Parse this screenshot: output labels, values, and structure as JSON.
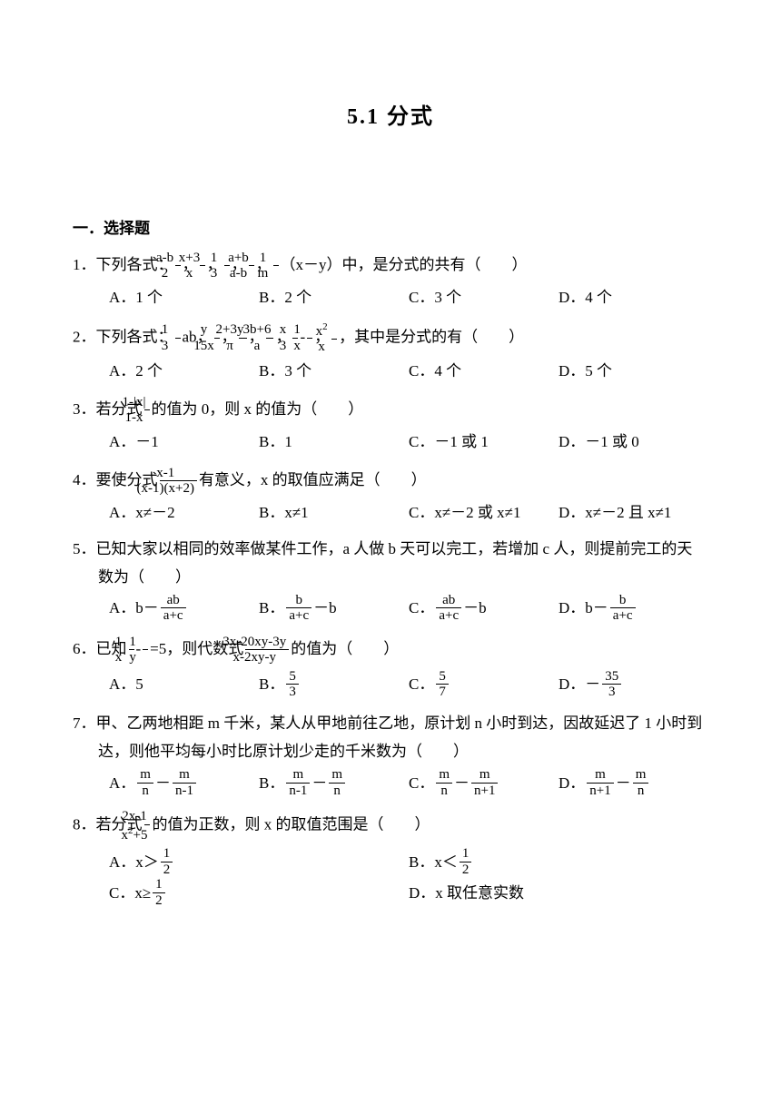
{
  "title": "5.1 分式",
  "section_header": "一．选择题",
  "questions": {
    "q1": {
      "num": "1．",
      "stem_pre": "下列各式：",
      "frac1_num": "a-b",
      "frac1_den": "2",
      "sep1": "，",
      "frac2_num": "x+3",
      "frac2_den": "x",
      "sep2": "，",
      "frac3_num": "1",
      "frac3_den": "3",
      "sep3": "，",
      "frac4_num": "a+b",
      "frac4_den": "a-b",
      "sep4": "，",
      "frac5_num": "1",
      "frac5_den": "m",
      "stem_post": "（x－y）中，是分式的共有（　　）",
      "optA": "A．1 个",
      "optB": "B．2 个",
      "optC": "C．3 个",
      "optD": "D．4 个"
    },
    "q2": {
      "num": "2．",
      "stem_pre": "下列各式：",
      "f1_num": "1",
      "f1_den": "3",
      "f1_post": "ab，",
      "f2_num": "y",
      "f2_den": "15x",
      "sep2": "，",
      "f3_num": "2+3y",
      "f3_den": "π",
      "sep3": "，",
      "f4_num": "3b+6",
      "f4_den": "a",
      "sep4": "，",
      "f5_num": "x",
      "f5_den": "3",
      "minus": "-",
      "f6_num": "1",
      "f6_den": "x",
      "sep6": "，",
      "f7_num": "x",
      "f7_sup": "2",
      "f7_den": "x",
      "stem_post": "，其中是分式的有（　　）",
      "optA": "A．2 个",
      "optB": "B．3 个",
      "optC": "C．4 个",
      "optD": "D．5 个"
    },
    "q3": {
      "num": "3．",
      "stem_pre": "若分式",
      "f_num": "1-|x|",
      "f_den": "1-x",
      "stem_post": "的值为 0，则 x 的值为（　　）",
      "optA": "A．－1",
      "optB": "B．1",
      "optC": "C．－1 或 1",
      "optD": "D．－1 或 0"
    },
    "q4": {
      "num": "4．",
      "stem_pre": "要使分式",
      "f_num": "x-1",
      "f_den": "(x-1)(x+2)",
      "stem_post": "有意义，x 的取值应满足（　　）",
      "optA": "A．x≠－2",
      "optB": "B．x≠1",
      "optC": "C．x≠－2 或 x≠1",
      "optD": "D．x≠－2 且 x≠1"
    },
    "q5": {
      "num": "5．",
      "line1": "已知大家以相同的效率做某件工作，a 人做 b 天可以完工，若增加 c 人，则提前完工的天",
      "line2": "数为（　　）",
      "optA_pre": "A．b－",
      "optA_num": "ab",
      "optA_den": "a+c",
      "optB_pre": "B．",
      "optB_num": "b",
      "optB_den": "a+c",
      "optB_post": "－b",
      "optC_pre": "C．",
      "optC_num": "ab",
      "optC_den": "a+c",
      "optC_post": "－b",
      "optD_pre": "D．b－",
      "optD_num": "b",
      "optD_den": "a+c"
    },
    "q6": {
      "num": "6．",
      "stem_pre": "已知",
      "f1_num": "1",
      "f1_den": "x",
      "minus": "-",
      "f2_num": "1",
      "f2_den": "y",
      "eq5": "=5，则代数式",
      "f3_num": "3x-20xy-3y",
      "f3_den": "x-2xy-y",
      "stem_post": "的值为（　　）",
      "optA": "A．5",
      "optB_pre": "B．",
      "optB_num": "5",
      "optB_den": "3",
      "optC_pre": "C．",
      "optC_num": "5",
      "optC_den": "7",
      "optD_pre": "D．－",
      "optD_num": "35",
      "optD_den": "3"
    },
    "q7": {
      "num": "7．",
      "line1": "甲、乙两地相距 m 千米，某人从甲地前往乙地，原计划 n 小时到达，因故延迟了 1 小时到",
      "line2": "达，则他平均每小时比原计划少走的千米数为（　　）",
      "optA_pre": "A．",
      "optA1_num": "m",
      "optA1_den": "n",
      "optA_minus": "－",
      "optA2_num": "m",
      "optA2_den": "n-1",
      "optB_pre": "B．",
      "optB1_num": "m",
      "optB1_den": "n-1",
      "optB_minus": "－",
      "optB2_num": "m",
      "optB2_den": "n",
      "optC_pre": "C．",
      "optC1_num": "m",
      "optC1_den": "n",
      "optC_minus": "－",
      "optC2_num": "m",
      "optC2_den": "n+1",
      "optD_pre": "D．",
      "optD1_num": "m",
      "optD1_den": "n+1",
      "optD_minus": "－",
      "optD2_num": "m",
      "optD2_den": "n"
    },
    "q8": {
      "num": "8．",
      "stem_pre": "若分式",
      "f_num": "2x-1",
      "f_den_pre": "x",
      "f_den_sup": "2",
      "f_den_post": "+5",
      "stem_post": "的值为正数，则 x 的取值范围是（　　）",
      "optA_pre": "A．x＞",
      "optA_num": "1",
      "optA_den": "2",
      "optB_pre": "B．x＜",
      "optB_num": "1",
      "optB_den": "2",
      "optC_pre": "C．x≥",
      "optC_num": "1",
      "optC_den": "2",
      "optD": "D．x 取任意实数"
    }
  }
}
